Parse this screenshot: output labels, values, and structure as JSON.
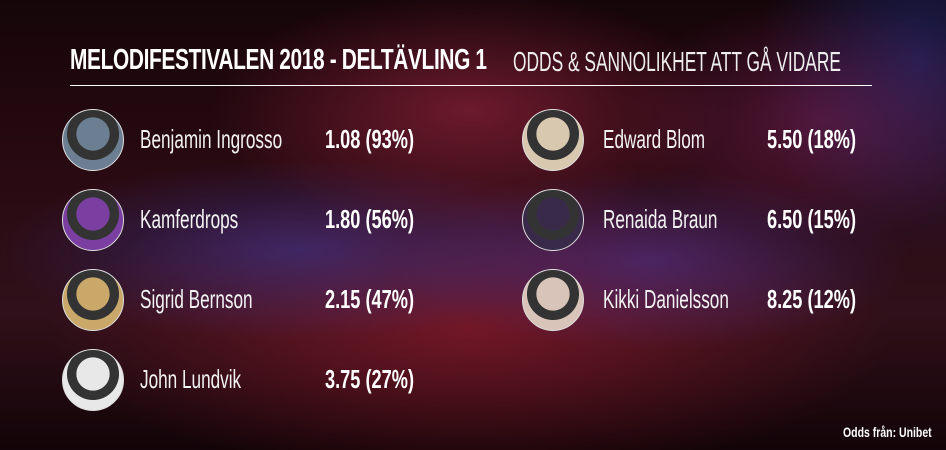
{
  "title": "MELODIFESTIVALEN 2018 - DELTÄVLING 1",
  "subtitle": "ODDS & SANNOLIKHET ATT GÅ VIDARE",
  "left": [
    {
      "name": "Benjamin Ingrosso",
      "odds": "1.08 (93%)",
      "photo_color": "#6c7f92"
    },
    {
      "name": "Kamferdrops",
      "odds": "1.80 (56%)",
      "photo_color": "#7a3fa0"
    },
    {
      "name": "Sigrid Bernson",
      "odds": "2.15 (47%)",
      "photo_color": "#c9a86a"
    },
    {
      "name": "John Lundvik",
      "odds": "3.75 (27%)",
      "photo_color": "#e8e8e8"
    }
  ],
  "right": [
    {
      "name": "Edward Blom",
      "odds": "5.50 (18%)",
      "photo_color": "#d9c8b0"
    },
    {
      "name": "Renaida Braun",
      "odds": "6.50 (15%)",
      "photo_color": "#3a2a4a"
    },
    {
      "name": "Kikki Danielsson",
      "odds": "8.25 (12%)",
      "photo_color": "#d8c4b8"
    }
  ],
  "footer": "Odds från: Unibet"
}
